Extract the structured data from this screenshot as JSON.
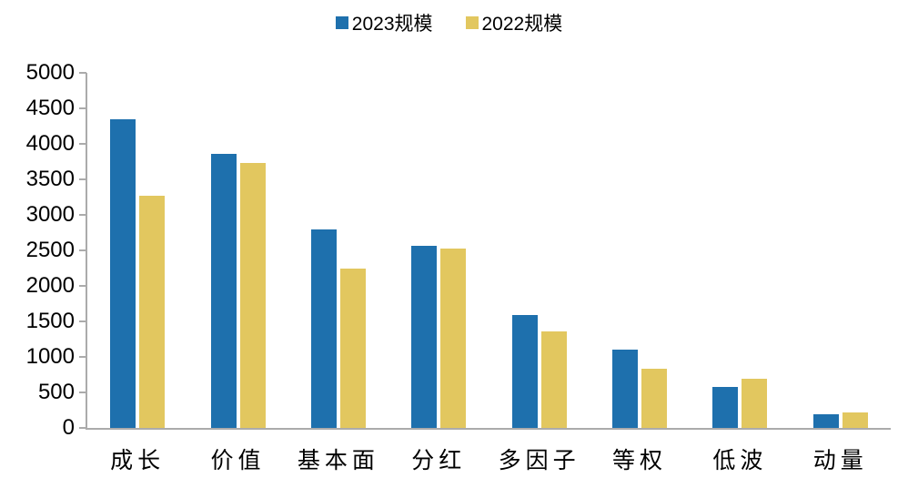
{
  "chart_data": {
    "type": "bar",
    "title": "",
    "xlabel": "",
    "ylabel": "",
    "categories": [
      "成长",
      "价值",
      "基本面",
      "分红",
      "多因子",
      "等权",
      "低波",
      "动量"
    ],
    "series": [
      {
        "name": "2023规模",
        "color": "#1E70AD",
        "values": [
          4350,
          3860,
          2790,
          2560,
          1590,
          1100,
          580,
          190
        ]
      },
      {
        "name": "2022规模",
        "color": "#E2C75F",
        "values": [
          3270,
          3730,
          2240,
          2530,
          1360,
          830,
          690,
          220
        ]
      }
    ],
    "ylim": [
      0,
      5000
    ],
    "yticks": [
      0,
      500,
      1000,
      1500,
      2000,
      2500,
      3000,
      3500,
      4000,
      4500,
      5000
    ],
    "grid": false,
    "legend_position": "top-center"
  },
  "colors": {
    "axis": "#ababab",
    "background": "#ffffff",
    "text": "#000000"
  }
}
